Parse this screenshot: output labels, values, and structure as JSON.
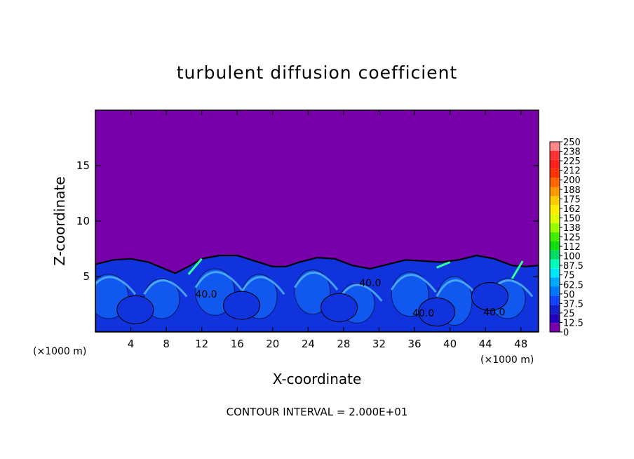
{
  "chart_data": {
    "type": "heatmap",
    "title": "turbulent diffusion coefficient",
    "xlabel": "X-coordinate",
    "ylabel": "Z-coordinate",
    "x_unit_left": "(×1000 m)",
    "x_unit_right": "(×1000 m)",
    "xlim": [
      0,
      50
    ],
    "ylim": [
      0,
      20
    ],
    "x_ticks": [
      4,
      8,
      12,
      16,
      20,
      24,
      28,
      32,
      36,
      40,
      44,
      48
    ],
    "y_ticks": [
      5,
      10,
      15
    ],
    "contour_note": "CONTOUR INTERVAL = 2.000E+01",
    "contour_labels": [
      {
        "text": "40.0",
        "x": 12.5,
        "z": 3.1
      },
      {
        "text": "40.0",
        "x": 31.0,
        "z": 4.1
      },
      {
        "text": "40.0",
        "x": 37.0,
        "z": 1.4
      },
      {
        "text": "40.0",
        "x": 45.0,
        "z": 1.5
      }
    ],
    "boundary_layer": {
      "top_profile": [
        [
          0,
          6.1
        ],
        [
          2,
          6.5
        ],
        [
          4,
          6.6
        ],
        [
          6,
          6.3
        ],
        [
          7.5,
          5.8
        ],
        [
          9,
          5.3
        ],
        [
          10.5,
          5.9
        ],
        [
          12,
          6.6
        ],
        [
          14,
          6.9
        ],
        [
          16,
          6.9
        ],
        [
          18,
          6.4
        ],
        [
          20,
          5.9
        ],
        [
          21.5,
          5.9
        ],
        [
          23,
          6.3
        ],
        [
          25,
          6.7
        ],
        [
          27,
          6.6
        ],
        [
          29,
          6.0
        ],
        [
          31,
          5.7
        ],
        [
          33,
          6.1
        ],
        [
          35,
          6.5
        ],
        [
          37,
          6.4
        ],
        [
          39,
          6.3
        ],
        [
          41,
          6.5
        ],
        [
          43,
          6.9
        ],
        [
          45,
          6.6
        ],
        [
          47,
          6.0
        ],
        [
          48.5,
          5.9
        ],
        [
          50,
          6.0
        ]
      ],
      "fill_value": 45
    },
    "colorbar": {
      "ticks": [
        "250",
        "238",
        "225",
        "212",
        "200",
        "188",
        "175",
        "162",
        "150",
        "138",
        "125",
        "112",
        "100",
        "87.5",
        "75",
        "62.5",
        "50",
        "37.5",
        "25",
        "12.5",
        "0"
      ],
      "colors": [
        "#ff8888",
        "#ff3333",
        "#ff1f1f",
        "#ff3300",
        "#ff6600",
        "#ff9900",
        "#ffcc00",
        "#ffee00",
        "#ddff00",
        "#99ff00",
        "#44ee00",
        "#11dd11",
        "#00dd66",
        "#00ffbb",
        "#00e8ff",
        "#00aaff",
        "#0077ff",
        "#1144ff",
        "#1122cc",
        "#2200bb",
        "#7700aa"
      ]
    },
    "colors": {
      "background_field": "#7700aa",
      "bl_fill": "#1133dd",
      "bl_bright": "#1177ff",
      "bl_light": "#55bbff"
    }
  }
}
